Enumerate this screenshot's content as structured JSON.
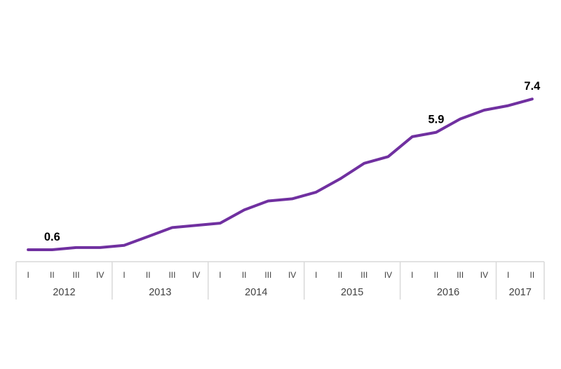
{
  "colors": {
    "line": "#7030A0",
    "axis": "#D9D9D9",
    "tick_label": "#404040",
    "data_label": "#000000",
    "background": "#ffffff"
  },
  "chart_data": {
    "type": "line",
    "x_axis": {
      "years": [
        {
          "label": "2012",
          "quarters": [
            "I",
            "II",
            "III",
            "IV"
          ]
        },
        {
          "label": "2013",
          "quarters": [
            "I",
            "II",
            "III",
            "IV"
          ]
        },
        {
          "label": "2014",
          "quarters": [
            "I",
            "II",
            "III",
            "IV"
          ]
        },
        {
          "label": "2015",
          "quarters": [
            "I",
            "II",
            "III",
            "IV"
          ]
        },
        {
          "label": "2016",
          "quarters": [
            "I",
            "II",
            "III",
            "IV"
          ]
        },
        {
          "label": "2017",
          "quarters": [
            "I",
            "II"
          ]
        }
      ]
    },
    "series": [
      {
        "name": "quarterly-values",
        "values": [
          0.6,
          0.6,
          0.7,
          0.7,
          0.8,
          1.2,
          1.6,
          1.7,
          1.8,
          2.4,
          2.8,
          2.9,
          3.2,
          3.8,
          4.5,
          4.8,
          5.7,
          5.9,
          6.5,
          6.9,
          7.1,
          7.4
        ]
      }
    ],
    "data_labels": [
      {
        "index": 1,
        "text": "0.6"
      },
      {
        "index": 17,
        "text": "5.9"
      },
      {
        "index": 21,
        "text": "7.4"
      }
    ],
    "ylim": [
      0,
      7.9
    ],
    "grid": false,
    "legend": false
  }
}
